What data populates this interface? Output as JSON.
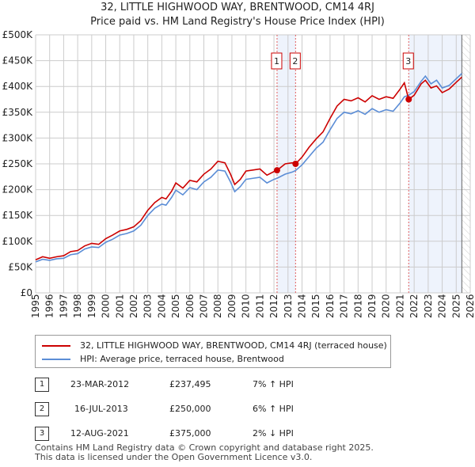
{
  "title": "32, LITTLE HIGHWOOD WAY, BRENTWOOD, CM14 4RJ",
  "subtitle": "Price paid vs. HM Land Registry's House Price Index (HPI)",
  "chart_data": {
    "type": "line",
    "title": "32, LITTLE HIGHWOOD WAY, BRENTWOOD, CM14 4RJ",
    "subtitle": "Price paid vs. HM Land Registry's House Price Index (HPI)",
    "xlim": [
      1995,
      2026
    ],
    "ylim": [
      0,
      500000
    ],
    "x_ticks": [
      "1995",
      "1996",
      "1997",
      "1998",
      "1999",
      "2000",
      "2001",
      "2002",
      "2003",
      "2004",
      "2005",
      "2006",
      "2007",
      "2008",
      "2009",
      "2010",
      "2011",
      "2012",
      "2013",
      "2014",
      "2015",
      "2016",
      "2017",
      "2018",
      "2019",
      "2020",
      "2021",
      "2022",
      "2023",
      "2024",
      "2025",
      "2026"
    ],
    "y_ticks": [
      {
        "v": 0,
        "l": "£0"
      },
      {
        "v": 50000,
        "l": "£50K"
      },
      {
        "v": 100000,
        "l": "£100K"
      },
      {
        "v": 150000,
        "l": "£150K"
      },
      {
        "v": 200000,
        "l": "£200K"
      },
      {
        "v": 250000,
        "l": "£250K"
      },
      {
        "v": 300000,
        "l": "£300K"
      },
      {
        "v": 350000,
        "l": "£350K"
      },
      {
        "v": 400000,
        "l": "£400K"
      },
      {
        "v": 450000,
        "l": "£450K"
      },
      {
        "v": 500000,
        "l": "£500K"
      }
    ],
    "grid": true,
    "series": [
      {
        "name": "32, LITTLE HIGHWOOD WAY, BRENTWOOD, CM14 4RJ (terraced house)",
        "color": "#cc0000",
        "x": [
          1995,
          1995.5,
          1996,
          1996.5,
          1997,
          1997.5,
          1998,
          1998.5,
          1999,
          1999.5,
          2000,
          2000.5,
          2001,
          2001.5,
          2002,
          2002.5,
          2003,
          2003.5,
          2004,
          2004.3,
          2004.7,
          2005,
          2005.5,
          2006,
          2006.5,
          2007,
          2007.5,
          2008,
          2008.5,
          2008.9,
          2009.2,
          2009.6,
          2010,
          2010.5,
          2011,
          2011.5,
          2012,
          2012.22,
          2012.8,
          2013.3,
          2013.54,
          2014,
          2014.5,
          2015,
          2015.5,
          2016,
          2016.5,
          2017,
          2017.5,
          2018,
          2018.5,
          2019,
          2019.5,
          2020,
          2020.5,
          2021,
          2021.3,
          2021.61,
          2022,
          2022.5,
          2022.8,
          2023.2,
          2023.6,
          2024,
          2024.5,
          2025,
          2025.4
        ],
        "y": [
          64000,
          70000,
          67000,
          70000,
          72000,
          80000,
          82000,
          91000,
          96000,
          94000,
          105000,
          112000,
          120000,
          123000,
          128000,
          140000,
          160000,
          175000,
          185000,
          182000,
          197000,
          213000,
          203000,
          218000,
          215000,
          230000,
          240000,
          255000,
          252000,
          230000,
          210000,
          220000,
          236000,
          238000,
          240000,
          228000,
          235000,
          237495,
          250000,
          252000,
          250000,
          263000,
          282000,
          298000,
          312000,
          338000,
          362000,
          375000,
          372000,
          378000,
          370000,
          382000,
          375000,
          380000,
          377000,
          395000,
          407000,
          375000,
          383000,
          405000,
          412000,
          397000,
          401000,
          388000,
          395000,
          408000,
          418000
        ]
      },
      {
        "name": "HPI: Average price, terraced house, Brentwood",
        "color": "#5b8dd6",
        "x": [
          1995,
          1995.5,
          1996,
          1996.5,
          1997,
          1997.5,
          1998,
          1998.5,
          1999,
          1999.5,
          2000,
          2000.5,
          2001,
          2001.5,
          2002,
          2002.5,
          2003,
          2003.5,
          2004,
          2004.3,
          2004.7,
          2005,
          2005.5,
          2006,
          2006.5,
          2007,
          2007.5,
          2008,
          2008.5,
          2008.9,
          2009.2,
          2009.6,
          2010,
          2010.5,
          2011,
          2011.5,
          2012,
          2012.22,
          2012.8,
          2013.3,
          2013.54,
          2014,
          2014.5,
          2015,
          2015.5,
          2016,
          2016.5,
          2017,
          2017.5,
          2018,
          2018.5,
          2019,
          2019.5,
          2020,
          2020.5,
          2021,
          2021.3,
          2021.61,
          2022,
          2022.5,
          2022.8,
          2023.2,
          2023.6,
          2024,
          2024.5,
          2025,
          2025.4
        ],
        "y": [
          60000,
          65000,
          63000,
          66000,
          67000,
          74000,
          76000,
          85000,
          89000,
          88000,
          98000,
          104000,
          112000,
          115000,
          120000,
          131000,
          150000,
          164000,
          172000,
          170000,
          185000,
          199000,
          190000,
          204000,
          200000,
          215000,
          224000,
          238000,
          236000,
          215000,
          196000,
          206000,
          220000,
          222000,
          224000,
          213000,
          220000,
          222000,
          230000,
          234000,
          237000,
          248000,
          264000,
          280000,
          292000,
          316000,
          338000,
          350000,
          347000,
          353000,
          346000,
          357000,
          350000,
          355000,
          352000,
          368000,
          380000,
          383000,
          390000,
          410000,
          420000,
          405000,
          412000,
          397000,
          402000,
          415000,
          425000
        ]
      }
    ],
    "sales": [
      {
        "label": "1",
        "x": 2012.22,
        "y": 237495
      },
      {
        "label": "2",
        "x": 2013.54,
        "y": 250000
      },
      {
        "label": "3",
        "x": 2021.61,
        "y": 375000
      }
    ],
    "data_end": 2025.4
  },
  "legend": {
    "red": "32, LITTLE HIGHWOOD WAY, BRENTWOOD, CM14 4RJ (terraced house)",
    "blue": "HPI: Average price, terraced house, Brentwood"
  },
  "transactions": [
    {
      "num": "1",
      "date": "23-MAR-2012",
      "price": "£237,495",
      "hpi": "7% ↑ HPI"
    },
    {
      "num": "2",
      "date": "16-JUL-2013",
      "price": "£250,000",
      "hpi": "6% ↑ HPI"
    },
    {
      "num": "3",
      "date": "12-AUG-2021",
      "price": "£375,000",
      "hpi": "2% ↓ HPI"
    }
  ],
  "footer": [
    "Contains HM Land Registry data © Crown copyright and database right 2025.",
    "This data is licensed under the Open Government Licence v3.0."
  ]
}
